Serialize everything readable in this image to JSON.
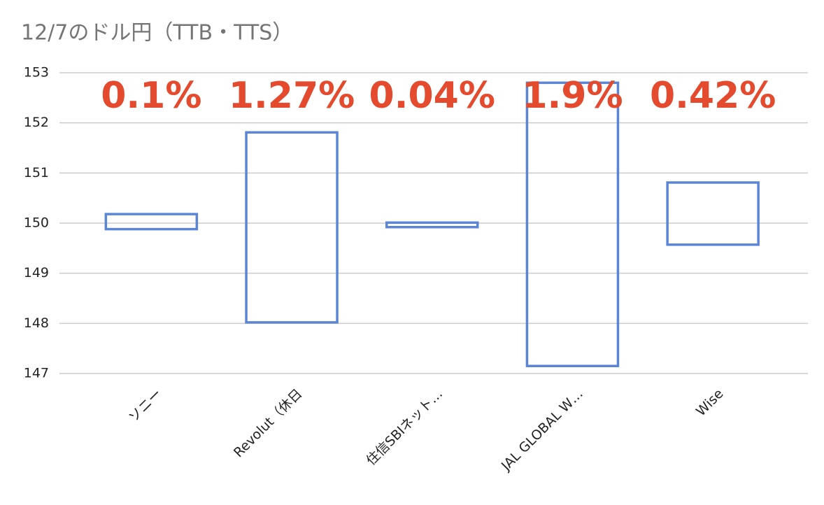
{
  "chart_data": {
    "type": "range-bar",
    "title": "12/7のドル円（TTB・TTS）",
    "categories": [
      "ソニー",
      "Revolut（休日",
      "住信SBIネット…",
      "JAL GLOBAL W…",
      "Wise"
    ],
    "low": [
      149.88,
      148.02,
      149.92,
      147.15,
      149.57
    ],
    "high": [
      150.18,
      151.81,
      150.01,
      152.8,
      150.81
    ],
    "annotations": [
      "0.1%",
      "1.27%",
      "0.04%",
      "1.9%",
      "0.42%"
    ],
    "color": "#5b86d6",
    "annotation_color": "#e34a2e",
    "ylim": [
      147,
      153
    ],
    "yticks": [
      147,
      148,
      149,
      150,
      151,
      152,
      153
    ],
    "grid": true
  }
}
